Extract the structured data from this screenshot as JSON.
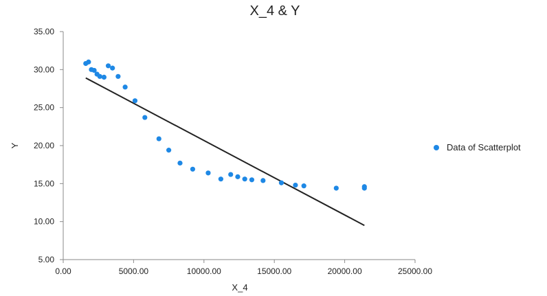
{
  "chart_data": {
    "type": "scatter",
    "title": "X_4 & Y",
    "xlabel": "X_4",
    "ylabel": "Y",
    "xlim": [
      0,
      25000
    ],
    "ylim": [
      5,
      35
    ],
    "x_ticks": [
      "0.00",
      "5000.00",
      "10000.00",
      "15000.00",
      "20000.00",
      "25000.00"
    ],
    "y_ticks": [
      "5.00",
      "10.00",
      "15.00",
      "20.00",
      "25.00",
      "30.00",
      "35.00"
    ],
    "grid": false,
    "legend_position": "right",
    "series": [
      {
        "name": "Data of Scatterplot",
        "color": "#1e88e5",
        "points": [
          [
            1600,
            30.8
          ],
          [
            1800,
            31.0
          ],
          [
            2000,
            30.0
          ],
          [
            2200,
            29.9
          ],
          [
            2400,
            29.4
          ],
          [
            2600,
            29.1
          ],
          [
            2900,
            29.0
          ],
          [
            3200,
            30.5
          ],
          [
            3500,
            30.2
          ],
          [
            3900,
            29.1
          ],
          [
            4400,
            27.7
          ],
          [
            5100,
            25.9
          ],
          [
            5800,
            23.7
          ],
          [
            6800,
            20.9
          ],
          [
            7500,
            19.4
          ],
          [
            8300,
            17.7
          ],
          [
            9200,
            16.9
          ],
          [
            10300,
            16.4
          ],
          [
            11200,
            15.6
          ],
          [
            11900,
            16.2
          ],
          [
            12400,
            15.9
          ],
          [
            12900,
            15.6
          ],
          [
            13400,
            15.5
          ],
          [
            14200,
            15.4
          ],
          [
            15500,
            15.1
          ],
          [
            16500,
            14.8
          ],
          [
            17100,
            14.7
          ],
          [
            19400,
            14.4
          ],
          [
            21400,
            14.6
          ],
          [
            21400,
            14.4
          ]
        ]
      }
    ],
    "trendline": {
      "color": "#222222",
      "points": [
        [
          1600,
          28.9
        ],
        [
          21400,
          9.5
        ]
      ]
    }
  }
}
